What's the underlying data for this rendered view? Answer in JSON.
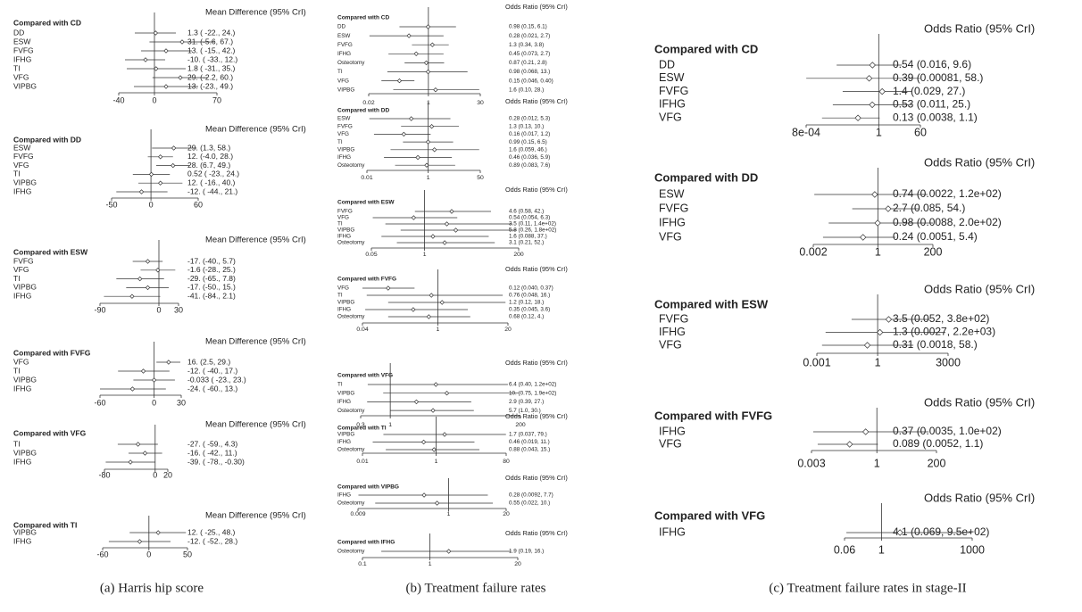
{
  "panels": [
    {
      "caption": "(a)  Harris hip score",
      "log_scale": false,
      "plots": [
        {
          "header": "Mean Difference (95% CrI)",
          "title": "Compared with CD",
          "ticks": [
            -40,
            0,
            70
          ],
          "rows": [
            {
              "name": "DD",
              "est": 1.3,
              "lo": -22,
              "hi": 24,
              "label": "1.3 ( -22., 24.)"
            },
            {
              "name": "ESW",
              "est": 31,
              "lo": -5.6,
              "hi": 67,
              "label": "31. (-5.6, 67.)"
            },
            {
              "name": "FVFG",
              "est": 13,
              "lo": -15,
              "hi": 42,
              "label": "13. ( -15., 42.)"
            },
            {
              "name": "IFHG",
              "est": -10,
              "lo": -33,
              "hi": 12,
              "label": "-10. ( -33., 12.)"
            },
            {
              "name": "TI",
              "est": 1.8,
              "lo": -31,
              "hi": 35,
              "label": "1.8 ( -31., 35.)"
            },
            {
              "name": "VFG",
              "est": 29,
              "lo": -2.2,
              "hi": 60,
              "label": "29. (-2.2, 60.)"
            },
            {
              "name": "VIPBG",
              "est": 13,
              "lo": -23,
              "hi": 49,
              "label": "13. (-23., 49.)"
            }
          ]
        },
        {
          "header": "Mean Difference (95% CrI)",
          "title": "Compared with DD",
          "ticks": [
            -50,
            0,
            60
          ],
          "rows": [
            {
              "name": "ESW",
              "est": 29,
              "lo": 1.3,
              "hi": 58,
              "label": "29. (1.3, 58.)"
            },
            {
              "name": "FVFG",
              "est": 12,
              "lo": -4.0,
              "hi": 28,
              "label": "12. (-4.0, 28.)"
            },
            {
              "name": "VFG",
              "est": 28,
              "lo": 6.7,
              "hi": 49,
              "label": "28. (6.7, 49.)"
            },
            {
              "name": "TI",
              "est": 0.52,
              "lo": -23,
              "hi": 24,
              "label": "0.52 ( -23., 24.)"
            },
            {
              "name": "VIPBG",
              "est": 12,
              "lo": -16,
              "hi": 40,
              "label": "12. ( -16., 40.)"
            },
            {
              "name": "IFHG",
              "est": -12,
              "lo": -44,
              "hi": 21,
              "label": "-12. ( -44., 21.)"
            }
          ]
        },
        {
          "header": "Mean Difference (95% CrI)",
          "title": "Compared with ESW",
          "ticks": [
            -90,
            0,
            30
          ],
          "rows": [
            {
              "name": "FVFG",
              "est": -17,
              "lo": -40,
              "hi": 5.7,
              "label": "-17. (-40., 5.7)"
            },
            {
              "name": "VFG",
              "est": -1.6,
              "lo": -28,
              "hi": 25,
              "label": "-1.6 (-28., 25.)"
            },
            {
              "name": "TI",
              "est": -29,
              "lo": -65,
              "hi": 7.8,
              "label": "-29. (-65., 7.8)"
            },
            {
              "name": "VIPBG",
              "est": -17,
              "lo": -50,
              "hi": 15,
              "label": "-17. (-50., 15.)"
            },
            {
              "name": "IFHG",
              "est": -41,
              "lo": -84,
              "hi": 2.1,
              "label": "-41. (-84., 2.1)"
            }
          ]
        },
        {
          "header": "Mean Difference (95% CrI)",
          "title": "Compared with FVFG",
          "ticks": [
            -60,
            0,
            30
          ],
          "rows": [
            {
              "name": "VFG",
              "est": 16,
              "lo": 2.5,
              "hi": 29,
              "label": "16. (2.5, 29.)"
            },
            {
              "name": "TI",
              "est": -12,
              "lo": -40,
              "hi": 17,
              "label": "-12. ( -40., 17.)"
            },
            {
              "name": "VIPBG",
              "est": -0.033,
              "lo": -23,
              "hi": 23,
              "label": "-0.033 ( -23., 23.)"
            },
            {
              "name": "IFHG",
              "est": -24,
              "lo": -60,
              "hi": 13,
              "label": "-24. ( -60., 13.)"
            }
          ]
        },
        {
          "header": "Mean Difference (95% CrI)",
          "title": "Compared with VFG",
          "ticks": [
            -80,
            0,
            20
          ],
          "rows": [
            {
              "name": "TI",
              "est": -27,
              "lo": -59,
              "hi": 4.3,
              "label": "-27. ( -59., 4.3)"
            },
            {
              "name": "VIPBG",
              "est": -16,
              "lo": -42,
              "hi": 11,
              "label": "-16. ( -42., 11.)"
            },
            {
              "name": "IFHG",
              "est": -39,
              "lo": -78,
              "hi": -0.3,
              "label": "-39. ( -78., -0.30)"
            }
          ]
        },
        {
          "header": "Mean Difference (95% CrI)",
          "title": "Compared with TI",
          "ticks": [
            -60,
            0,
            50
          ],
          "rows": [
            {
              "name": "VIPBG",
              "est": 12,
              "lo": -25,
              "hi": 48,
              "label": "12. ( -25., 48.)"
            },
            {
              "name": "IFHG",
              "est": -12,
              "lo": -52,
              "hi": 28,
              "label": "-12. ( -52., 28.)"
            }
          ]
        }
      ]
    },
    {
      "caption": "(b)  Treatment failure rates",
      "log_scale": true,
      "plots": [
        {
          "header": "Odds Ratio (95% CrI)",
          "title": "Compared with CD",
          "ticks": [
            0.02,
            1,
            30
          ],
          "rows": [
            {
              "name": "DD",
              "est": 0.98,
              "lo": 0.15,
              "hi": 6.1,
              "label": "0.98 (0.15, 6.1)"
            },
            {
              "name": "ESW",
              "est": 0.28,
              "lo": 0.021,
              "hi": 2.7,
              "label": "0.28 (0.021, 2.7)"
            },
            {
              "name": "FVFG",
              "est": 1.3,
              "lo": 0.34,
              "hi": 3.8,
              "label": "1.3 (0.34, 3.8)"
            },
            {
              "name": "IFHG",
              "est": 0.45,
              "lo": 0.073,
              "hi": 2.7,
              "label": "0.45 (0.073, 2.7)"
            },
            {
              "name": "Osteotomy",
              "est": 0.87,
              "lo": 0.21,
              "hi": 2.8,
              "label": "0.87 (0.21, 2.8)"
            },
            {
              "name": "TI",
              "est": 0.98,
              "lo": 0.068,
              "hi": 13,
              "label": "0.98 (0.068, 13.)"
            },
            {
              "name": "VFG",
              "est": 0.15,
              "lo": 0.046,
              "hi": 0.4,
              "label": "0.15 (0.046, 0.40)"
            },
            {
              "name": "VIPBG",
              "est": 1.6,
              "lo": 0.1,
              "hi": 28,
              "label": "1.6 (0.10, 28.)"
            }
          ]
        },
        {
          "header": "Odds Ratio (95% CrI)",
          "title": "Compared with DD",
          "ticks": [
            0.01,
            1,
            50
          ],
          "rows": [
            {
              "name": "ESW",
              "est": 0.28,
              "lo": 0.012,
              "hi": 5.3,
              "label": "0.28 (0.012, 5.3)"
            },
            {
              "name": "FVFG",
              "est": 1.3,
              "lo": 0.13,
              "hi": 10,
              "label": "1.3 (0.13, 10.)"
            },
            {
              "name": "VFG",
              "est": 0.16,
              "lo": 0.017,
              "hi": 1.2,
              "label": "0.16 (0.017, 1.2)"
            },
            {
              "name": "TI",
              "est": 0.99,
              "lo": 0.15,
              "hi": 6.5,
              "label": "0.99 (0.15, 6.5)"
            },
            {
              "name": "VIPBG",
              "est": 1.6,
              "lo": 0.059,
              "hi": 46,
              "label": "1.6 (0.059, 46.)"
            },
            {
              "name": "IFHG",
              "est": 0.46,
              "lo": 0.036,
              "hi": 5.9,
              "label": "0.46 (0.036, 5.9)"
            },
            {
              "name": "Osteotomy",
              "est": 0.89,
              "lo": 0.083,
              "hi": 7.6,
              "label": "0.89 (0.083, 7.6)"
            }
          ]
        },
        {
          "header": "Odds Ratio (95% CrI)",
          "title": "Compared with ESW",
          "ticks": [
            0.05,
            1,
            200
          ],
          "rows": [
            {
              "name": "FVFG",
              "est": 4.6,
              "lo": 0.58,
              "hi": 42,
              "label": "4.6 (0.58, 42.)"
            },
            {
              "name": "VFG",
              "est": 0.54,
              "lo": 0.054,
              "hi": 6.3,
              "label": "0.54 (0.054, 6.3)"
            },
            {
              "name": "TI",
              "est": 3.5,
              "lo": 0.11,
              "hi": 140,
              "label": "3.5 (0.11, 1.4e+02)"
            },
            {
              "name": "VIPBG",
              "est": 5.8,
              "lo": 0.26,
              "hi": 180,
              "label": "5.8 (0.26, 1.8e+02)"
            },
            {
              "name": "IFHG",
              "est": 1.6,
              "lo": 0.088,
              "hi": 37,
              "label": "1.6 (0.088, 37.)"
            },
            {
              "name": "Osteotomy",
              "est": 3.1,
              "lo": 0.21,
              "hi": 52,
              "label": "3.1 (0.21, 52.)"
            }
          ]
        },
        {
          "header": "Odds Ratio (95% CrI)",
          "title": "Compared with FVFG",
          "ticks": [
            0.04,
            1,
            20
          ],
          "rows": [
            {
              "name": "VFG",
              "est": 0.12,
              "lo": 0.04,
              "hi": 0.37,
              "label": "0.12 (0.040, 0.37)"
            },
            {
              "name": "TI",
              "est": 0.76,
              "lo": 0.048,
              "hi": 16,
              "label": "0.76 (0.048, 16.)"
            },
            {
              "name": "VIPBG",
              "est": 1.2,
              "lo": 0.12,
              "hi": 18,
              "label": "1.2 (0.12, 18.)"
            },
            {
              "name": "IFHG",
              "est": 0.35,
              "lo": 0.045,
              "hi": 3.6,
              "label": "0.35 (0.045, 3.6)"
            },
            {
              "name": "Osteotomy",
              "est": 0.68,
              "lo": 0.12,
              "hi": 4,
              "label": "0.68 (0.12, 4.)"
            }
          ]
        },
        {
          "header": "Odds Ratio (95% CrI)",
          "title": "Compared with VFG",
          "ticks": [
            0.3,
            1,
            200
          ],
          "rows": [
            {
              "name": "TI",
              "est": 6.4,
              "lo": 0.4,
              "hi": 120,
              "label": "6.4 (0.40, 1.2e+02)"
            },
            {
              "name": "VIPBG",
              "est": 10,
              "lo": 0.75,
              "hi": 190,
              "label": "10. (0.75, 1.9e+02)"
            },
            {
              "name": "IFHG",
              "est": 2.9,
              "lo": 0.39,
              "hi": 27,
              "label": "2.9 (0.39, 27.)"
            },
            {
              "name": "Osteotomy",
              "est": 5.7,
              "lo": 1.0,
              "hi": 30,
              "label": "5.7 (1.0, 30.)"
            }
          ]
        },
        {
          "header": "Odds Ratio (95% CrI)",
          "title": "Compared with TI",
          "ticks": [
            0.01,
            1,
            80
          ],
          "rows": [
            {
              "name": "VIPBG",
              "est": 1.7,
              "lo": 0.037,
              "hi": 79,
              "label": "1.7 (0.037, 79.)"
            },
            {
              "name": "IFHG",
              "est": 0.46,
              "lo": 0.019,
              "hi": 11,
              "label": "0.46 (0.019, 11.)"
            },
            {
              "name": "Osteotomy",
              "est": 0.88,
              "lo": 0.043,
              "hi": 15,
              "label": "0.88 (0.043, 15.)"
            }
          ]
        },
        {
          "header": "Odds Ratio (95% CrI)",
          "title": "Compared with VIPBG",
          "ticks": [
            0.009,
            1,
            20
          ],
          "rows": [
            {
              "name": "IFHG",
              "est": 0.28,
              "lo": 0.0092,
              "hi": 7.7,
              "label": "0.28 (0.0092, 7.7)"
            },
            {
              "name": "Osteotomy",
              "est": 0.55,
              "lo": 0.022,
              "hi": 10,
              "label": "0.55 (0.022, 10.)"
            }
          ]
        },
        {
          "header": "Odds Ratio (95% CrI)",
          "title": "Compared with IFHG",
          "ticks": [
            0.1,
            1,
            20
          ],
          "rows": [
            {
              "name": "Osteotomy",
              "est": 1.9,
              "lo": 0.19,
              "hi": 16,
              "label": "1.9 (0.19, 16.)"
            }
          ]
        }
      ]
    },
    {
      "caption": "(c)  Treatment failure rates in stage-II",
      "log_scale": true,
      "plots": [
        {
          "header": "Odds Ratio (95% CrI)",
          "title": "Compared with CD",
          "ticks": [
            {
              "value": 0.0008,
              "label": "8e-04"
            },
            1,
            60
          ],
          "rows": [
            {
              "name": "DD",
              "est": 0.54,
              "lo": 0.016,
              "hi": 9.6,
              "label": "0.54 (0.016, 9.6)"
            },
            {
              "name": "ESW",
              "est": 0.39,
              "lo": 0.00081,
              "hi": 58,
              "label": "0.39 (0.00081, 58.)"
            },
            {
              "name": "FVFG",
              "est": 1.4,
              "lo": 0.029,
              "hi": 27,
              "label": "1.4 (0.029,  27.)"
            },
            {
              "name": "IFHG",
              "est": 0.53,
              "lo": 0.011,
              "hi": 25,
              "label": "0.53 (0.011,  25.)"
            },
            {
              "name": "VFG",
              "est": 0.13,
              "lo": 0.0038,
              "hi": 1.1,
              "label": "0.13 (0.0038, 1.1)"
            }
          ]
        },
        {
          "header": "Odds Ratio (95% CrI)",
          "title": "Compared with DD",
          "ticks": [
            0.002,
            1,
            200
          ],
          "rows": [
            {
              "name": "ESW",
              "est": 0.74,
              "lo": 0.0022,
              "hi": 120,
              "label": "0.74 (0.0022, 1.2e+02)"
            },
            {
              "name": "FVFG",
              "est": 2.7,
              "lo": 0.085,
              "hi": 54,
              "label": "2.7 (0.085, 54.)"
            },
            {
              "name": "IFHG",
              "est": 0.98,
              "lo": 0.0088,
              "hi": 200,
              "label": "0.98 (0.0088, 2.0e+02)"
            },
            {
              "name": "VFG",
              "est": 0.24,
              "lo": 0.0051,
              "hi": 5.4,
              "label": "0.24 (0.0051, 5.4)"
            }
          ]
        },
        {
          "header": "Odds Ratio (95% CrI)",
          "title": "Compared with ESW",
          "ticks": [
            0.001,
            1,
            3000
          ],
          "rows": [
            {
              "name": "FVFG",
              "est": 3.5,
              "lo": 0.052,
              "hi": 380,
              "label": "3.5 (0.052, 3.8e+02)"
            },
            {
              "name": "IFHG",
              "est": 1.3,
              "lo": 0.0027,
              "hi": 2200,
              "label": "1.3 (0.0027, 2.2e+03)"
            },
            {
              "name": "VFG",
              "est": 0.31,
              "lo": 0.0018,
              "hi": 58,
              "label": "0.31 (0.0018, 58.)"
            }
          ]
        },
        {
          "header": "Odds Ratio (95% CrI)",
          "title": "Compared with FVFG",
          "ticks": [
            0.003,
            1,
            200
          ],
          "rows": [
            {
              "name": "IFHG",
              "est": 0.37,
              "lo": 0.0035,
              "hi": 100,
              "label": "0.37 (0.0035, 1.0e+02)"
            },
            {
              "name": "VFG",
              "est": 0.089,
              "lo": 0.0052,
              "hi": 1.1,
              "label": "0.089 (0.0052, 1.1)"
            }
          ]
        },
        {
          "header": "Odds Ratio (95% CrI)",
          "title": "Compared with VFG",
          "ticks": [
            0.06,
            1,
            1000
          ],
          "rows": [
            {
              "name": "IFHG",
              "est": 4.1,
              "lo": 0.069,
              "hi": 950,
              "label": "4.1 (0.069, 9.5e+02)"
            }
          ]
        }
      ]
    }
  ]
}
